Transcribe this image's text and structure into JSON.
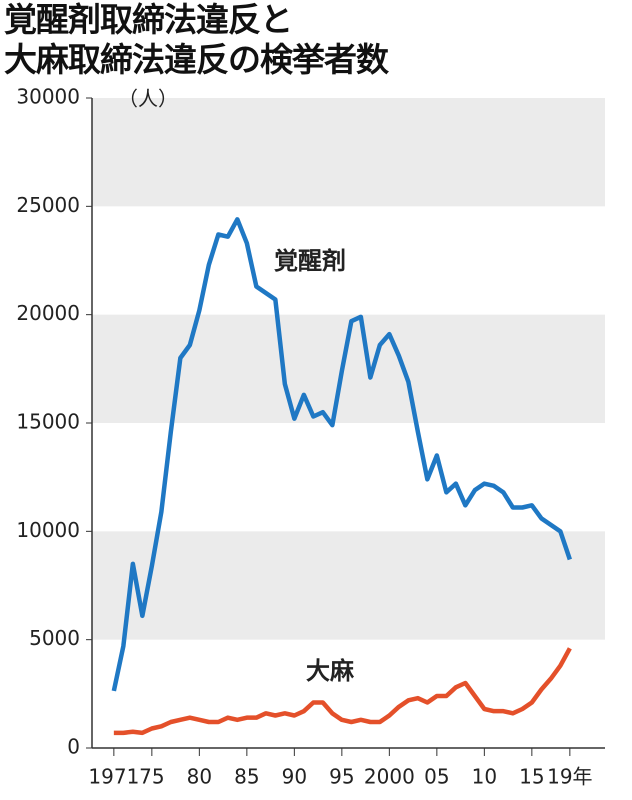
{
  "chart_data": {
    "type": "line",
    "title": "覚醒剤取締法違反と\n大麻取締法違反の検挙者数",
    "y_unit": "（人）",
    "x": [
      1971,
      1972,
      1973,
      1974,
      1975,
      1976,
      1977,
      1978,
      1979,
      1980,
      1981,
      1982,
      1983,
      1984,
      1985,
      1986,
      1987,
      1988,
      1989,
      1990,
      1991,
      1992,
      1993,
      1994,
      1995,
      1996,
      1997,
      1998,
      1999,
      2000,
      2001,
      2002,
      2003,
      2004,
      2005,
      2006,
      2007,
      2008,
      2009,
      2010,
      2011,
      2012,
      2013,
      2014,
      2015,
      2016,
      2017,
      2018,
      2019
    ],
    "series": [
      {
        "name": "覚醒剤",
        "color": "#1f78c4",
        "values": [
          2634,
          4700,
          8500,
          6100,
          8400,
          10900,
          14600,
          18000,
          18600,
          20200,
          22300,
          23700,
          23600,
          24400,
          23300,
          21300,
          21000,
          20700,
          16800,
          15200,
          16300,
          15300,
          15500,
          14900,
          17400,
          19700,
          19900,
          17100,
          18600,
          19100,
          18100,
          16900,
          14600,
          12400,
          13500,
          11800,
          12200,
          11200,
          11900,
          12200,
          12100,
          11800,
          11100,
          11100,
          11200,
          10600,
          10300,
          10000,
          8700
        ]
      },
      {
        "name": "大麻",
        "color": "#e4502a",
        "values": [
          700,
          700,
          750,
          700,
          900,
          1000,
          1200,
          1300,
          1400,
          1300,
          1200,
          1200,
          1400,
          1300,
          1400,
          1400,
          1600,
          1500,
          1600,
          1500,
          1700,
          2100,
          2100,
          1600,
          1300,
          1200,
          1300,
          1200,
          1200,
          1500,
          1900,
          2200,
          2300,
          2100,
          2400,
          2400,
          2800,
          3000,
          2400,
          1800,
          1700,
          1700,
          1600,
          1800,
          2100,
          2700,
          3200,
          3800,
          4600
        ]
      }
    ],
    "xlim": [
      1968.7,
      2022.7
    ],
    "xticks": [
      {
        "value": 1971,
        "label": "1971"
      },
      {
        "value": 1975,
        "label": "75"
      },
      {
        "value": 1980,
        "label": "80"
      },
      {
        "value": 1985,
        "label": "85"
      },
      {
        "value": 1990,
        "label": "90"
      },
      {
        "value": 1995,
        "label": "95"
      },
      2000,
      {
        "value": 2005,
        "label": "05"
      },
      {
        "value": 2010,
        "label": "10"
      },
      {
        "value": 2015,
        "label": "15"
      },
      {
        "value": 2019,
        "label": "19年"
      }
    ],
    "ylim": [
      0,
      30000
    ],
    "yticks": [
      0,
      5000,
      10000,
      15000,
      20000,
      25000,
      30000
    ],
    "band_fill": "#ebebeb"
  }
}
